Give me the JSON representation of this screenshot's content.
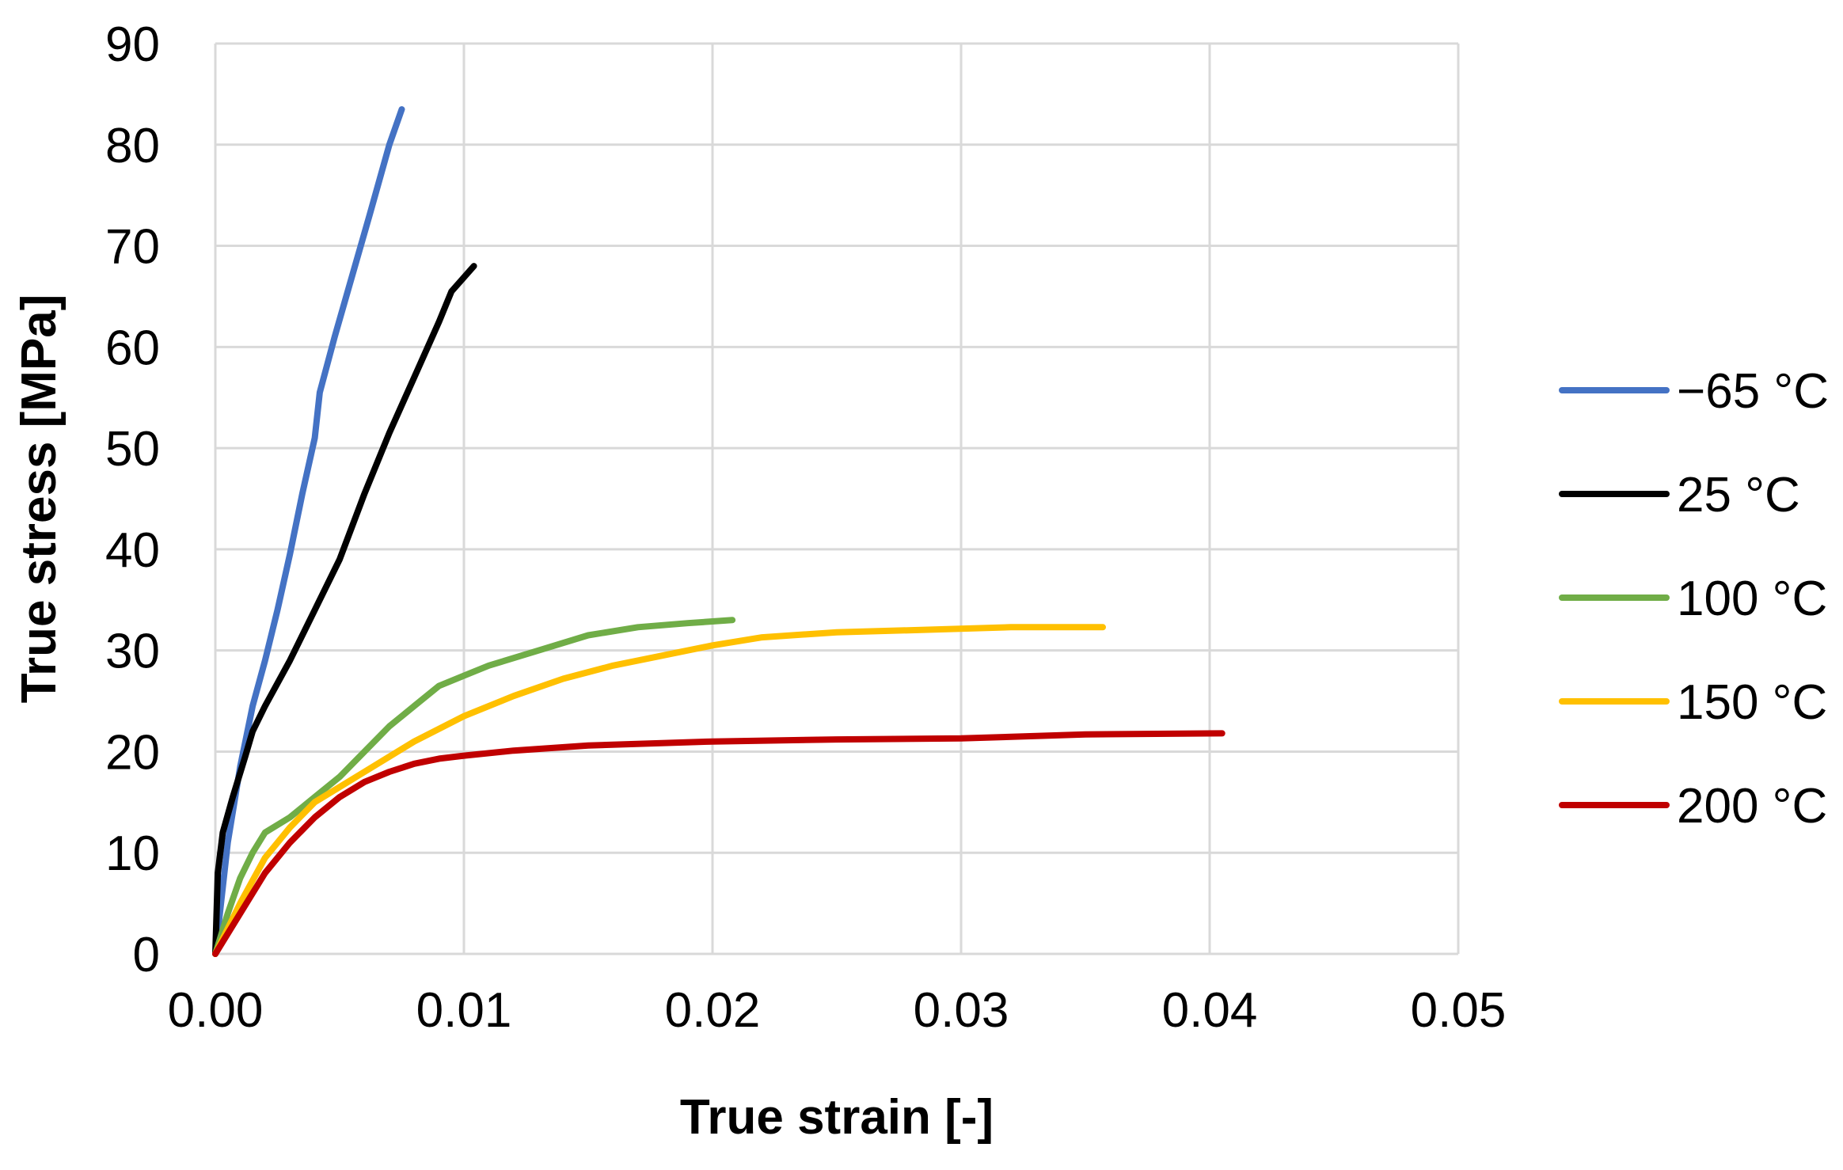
{
  "chart_data": {
    "type": "line",
    "title": "",
    "xlabel": "True strain [-]",
    "ylabel": "True stress [MPa]",
    "xlim": [
      0,
      0.05
    ],
    "ylim": [
      0,
      90
    ],
    "xticks": [
      0,
      0.01,
      0.02,
      0.03,
      0.04,
      0.05
    ],
    "xtick_labels": [
      "0.00",
      "0.01",
      "0.02",
      "0.03",
      "0.04",
      "0.05"
    ],
    "yticks": [
      0,
      10,
      20,
      30,
      40,
      50,
      60,
      70,
      80,
      90
    ],
    "ytick_labels": [
      "0",
      "10",
      "20",
      "30",
      "40",
      "50",
      "60",
      "70",
      "80",
      "90"
    ],
    "grid": true,
    "legend_position": "right",
    "series": [
      {
        "name": "−65 °C",
        "color": "#4472c4",
        "points": [
          [
            0,
            0
          ],
          [
            0.0005,
            11
          ],
          [
            0.001,
            18.5
          ],
          [
            0.0015,
            24.5
          ],
          [
            0.002,
            29
          ],
          [
            0.0025,
            34
          ],
          [
            0.003,
            39.5
          ],
          [
            0.0035,
            45.5
          ],
          [
            0.004,
            51
          ],
          [
            0.0042,
            55.5
          ],
          [
            0.0048,
            61
          ],
          [
            0.0055,
            67
          ],
          [
            0.0062,
            73
          ],
          [
            0.007,
            80
          ],
          [
            0.0075,
            83.5
          ]
        ]
      },
      {
        "name": "25 °C",
        "color": "#000000",
        "points": [
          [
            0,
            0
          ],
          [
            0.0001,
            8
          ],
          [
            0.0003,
            12
          ],
          [
            0.0007,
            15.5
          ],
          [
            0.0012,
            19.5
          ],
          [
            0.0015,
            22
          ],
          [
            0.002,
            24.5
          ],
          [
            0.003,
            29
          ],
          [
            0.004,
            34
          ],
          [
            0.005,
            39
          ],
          [
            0.006,
            45.5
          ],
          [
            0.007,
            51.5
          ],
          [
            0.008,
            57
          ],
          [
            0.009,
            62.5
          ],
          [
            0.0095,
            65.5
          ],
          [
            0.0104,
            68
          ]
        ]
      },
      {
        "name": "100 °C",
        "color": "#70ad47",
        "points": [
          [
            0,
            0
          ],
          [
            0.0005,
            4
          ],
          [
            0.001,
            7.5
          ],
          [
            0.0015,
            10
          ],
          [
            0.002,
            12
          ],
          [
            0.003,
            13.5
          ],
          [
            0.004,
            15.5
          ],
          [
            0.005,
            17.5
          ],
          [
            0.006,
            20
          ],
          [
            0.007,
            22.5
          ],
          [
            0.008,
            24.5
          ],
          [
            0.009,
            26.5
          ],
          [
            0.01,
            27.5
          ],
          [
            0.011,
            28.5
          ],
          [
            0.013,
            30
          ],
          [
            0.015,
            31.5
          ],
          [
            0.017,
            32.3
          ],
          [
            0.019,
            32.7
          ],
          [
            0.0208,
            33
          ]
        ]
      },
      {
        "name": "150 °C",
        "color": "#ffc000",
        "points": [
          [
            0,
            0
          ],
          [
            0.001,
            5
          ],
          [
            0.002,
            9.5
          ],
          [
            0.003,
            12.5
          ],
          [
            0.004,
            15
          ],
          [
            0.005,
            16.5
          ],
          [
            0.006,
            18
          ],
          [
            0.007,
            19.5
          ],
          [
            0.008,
            21
          ],
          [
            0.01,
            23.5
          ],
          [
            0.012,
            25.5
          ],
          [
            0.014,
            27.2
          ],
          [
            0.016,
            28.5
          ],
          [
            0.018,
            29.5
          ],
          [
            0.02,
            30.5
          ],
          [
            0.022,
            31.3
          ],
          [
            0.025,
            31.8
          ],
          [
            0.028,
            32
          ],
          [
            0.032,
            32.3
          ],
          [
            0.0357,
            32.3
          ]
        ]
      },
      {
        "name": "200 °C",
        "color": "#c00000",
        "points": [
          [
            0,
            0
          ],
          [
            0.001,
            4
          ],
          [
            0.002,
            8
          ],
          [
            0.003,
            11
          ],
          [
            0.004,
            13.5
          ],
          [
            0.005,
            15.5
          ],
          [
            0.006,
            17
          ],
          [
            0.007,
            18
          ],
          [
            0.008,
            18.8
          ],
          [
            0.009,
            19.3
          ],
          [
            0.01,
            19.6
          ],
          [
            0.012,
            20.1
          ],
          [
            0.015,
            20.6
          ],
          [
            0.02,
            21
          ],
          [
            0.025,
            21.2
          ],
          [
            0.03,
            21.3
          ],
          [
            0.035,
            21.7
          ],
          [
            0.0405,
            21.8
          ]
        ]
      }
    ]
  }
}
